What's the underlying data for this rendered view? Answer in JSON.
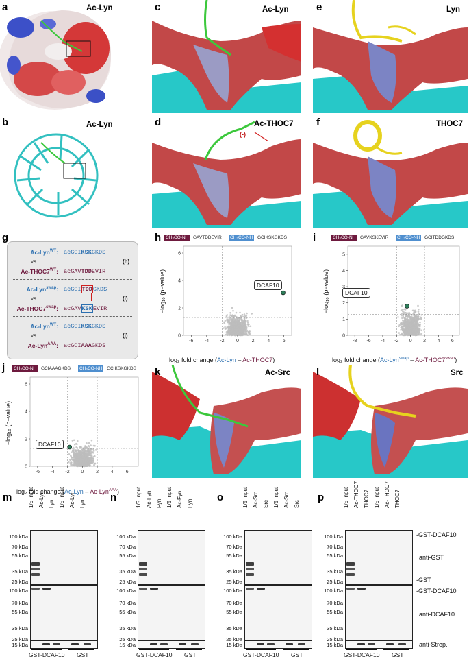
{
  "panels": {
    "a": {
      "label": "a",
      "title": "Ac-Lyn"
    },
    "b": {
      "label": "b",
      "title": "Ac-Lyn"
    },
    "c": {
      "label": "c",
      "title": "Ac-Lyn"
    },
    "d": {
      "label": "d",
      "title": "Ac-THOC7",
      "charge": "(-)"
    },
    "e": {
      "label": "e",
      "title": "Lyn"
    },
    "f": {
      "label": "f",
      "title": "THOC7"
    },
    "k": {
      "label": "k",
      "title": "Ac-Src"
    },
    "l": {
      "label": "l",
      "title": "Src"
    }
  },
  "g": {
    "label": "g",
    "rows": [
      {
        "name1": "Ac-Lyn",
        "sup1": "WT",
        "seq1a": "acGCI",
        "seq1b": "KSK",
        "seq1c": "GKDS",
        "vs": "vs",
        "name2": "Ac-THOC7",
        "sup2": "WT",
        "seq2a": "acGAV",
        "seq2b": "TDD",
        "seq2c": "EVIR",
        "ref": "(h)"
      },
      {
        "name1": "Ac-Lyn",
        "sup1": "swap",
        "seq1a": "acGCI",
        "seq1b": "TDD",
        "seq1c": "GKDS",
        "vs": "vs",
        "name2": "Ac-THOC7",
        "sup2": "swap",
        "seq2a": "acGAV",
        "seq2b": "KSK",
        "seq2c": "EVIR",
        "ref": "(i)"
      },
      {
        "name1": "Ac-Lyn",
        "sup1": "WT",
        "seq1a": "acGCI",
        "seq1b": "KSK",
        "seq1c": "GKDS",
        "vs": "vs",
        "name2": "Ac-Lyn",
        "sup2": "AAA",
        "seq2a": "acGCI",
        "seq2b": "AAA",
        "seq2c": "GKDS",
        "ref": "(j)"
      }
    ]
  },
  "volcano_h": {
    "label": "h",
    "tag_left": "CH₃CO-NH",
    "tag_left_seq": "GAVTDDEVIR",
    "tag_right": "CH₃CO-NH",
    "tag_right_seq": "GCIKSKGKDS",
    "ylabel": "−log₁₀ (p−value)",
    "xlabel_pre": "log₂ fold change (",
    "xlabel_a": "Ac-Lyn",
    "xlabel_mid": " – ",
    "xlabel_b": "Ac-THOC7",
    "xlabel_post": ")",
    "xticks": [
      "-6",
      "-4",
      "-2",
      "0",
      "2",
      "4",
      "6"
    ],
    "yticks": [
      "0",
      "2",
      "4",
      "6"
    ],
    "highlight": "DCAF10"
  },
  "volcano_i": {
    "label": "i",
    "tag_left": "CH₃CO-NH",
    "tag_left_seq": "GAVKSKEVIR",
    "tag_right": "CH₃CO-NH",
    "tag_right_seq": "GCITDDGKDS",
    "ylabel": "−log₁₀ (p−value)",
    "xlabel_pre": "log₂ fold change (",
    "xlabel_a": "Ac-Lyn",
    "xlabel_a_sup": "swap",
    "xlabel_mid": " – ",
    "xlabel_b": "Ac-THOC7",
    "xlabel_b_sup": "swap",
    "xlabel_post": ")",
    "xticks": [
      "-8",
      "-6",
      "-4",
      "-2",
      "0",
      "2",
      "4",
      "6"
    ],
    "yticks": [
      "0",
      "1",
      "2",
      "3",
      "4",
      "5"
    ],
    "highlight": "DCAF10"
  },
  "volcano_j": {
    "label": "j",
    "tag_left": "CH₃CO-NH",
    "tag_left_seq": "GCIAAAGKDS",
    "tag_right": "CH₃CO-NH",
    "tag_right_seq": "GCIKSKGKDS",
    "ylabel": "−log₁₀ (p−value)",
    "xlabel_pre": "log₂ fold change (",
    "xlabel_a": "Ac-Lyn",
    "xlabel_mid": " – ",
    "xlabel_b": "Ac-Lyn",
    "xlabel_b_sup": "AAA",
    "xlabel_post": ")",
    "xticks": [
      "-6",
      "-4",
      "-2",
      "0",
      "2",
      "4",
      "6"
    ],
    "yticks": [
      "0",
      "2",
      "4",
      "6"
    ],
    "highlight": "DCAF10"
  },
  "blots": {
    "kda_top": [
      "100 kDa",
      "70 kDa",
      "55 kDa",
      "35 kDa",
      "25 kDa"
    ],
    "kda_mid": [
      "100 kDa",
      "70 kDa",
      "55 kDa",
      "35 kDa",
      "25 kDa"
    ],
    "kda_bot": [
      "15 kDa"
    ],
    "m": {
      "label": "m",
      "lanes": [
        "1/5 Input",
        "Ac-Lyn",
        "Lyn",
        "1/5 Input",
        "Ac-Lyn",
        "Lyn"
      ]
    },
    "n": {
      "label": "n",
      "lanes": [
        "1/5 Input",
        "Ac-Fyn",
        "Fyn",
        "1/5 Input",
        "Ac-Fyn",
        "Fyn"
      ]
    },
    "o": {
      "label": "o",
      "lanes": [
        "1/5 Input",
        "Ac-Src",
        "Src",
        "1/5 Input",
        "Ac-Src",
        "Src"
      ]
    },
    "p": {
      "label": "p",
      "lanes": [
        "1/5 Input",
        "Ac-THOC7",
        "THOC7",
        "1/5 Input",
        "Ac-THOC7",
        "THOC7"
      ]
    },
    "group_left": "GST-DCAF10",
    "group_right": "GST",
    "right_labels": {
      "gst_dcaf10_top": "GST-DCAF10",
      "anti_gst": "anti-GST",
      "gst": "GST",
      "gst_dcaf10_mid": "GST-DCAF10",
      "anti_dcaf10": "anti-DCAF10",
      "anti_strep": "anti-Strep."
    }
  },
  "chart_data": [
    {
      "type": "scatter",
      "panel": "h",
      "xlabel": "log2 fold change (Ac-Lyn – Ac-THOC7)",
      "ylabel": "-log10 (p-value)",
      "xlim": [
        -7,
        7
      ],
      "ylim": [
        0,
        6.5
      ],
      "thresholds": {
        "x": [
          -2,
          2
        ],
        "y": 1.3
      },
      "series": [
        {
          "name": "DCAF10",
          "x": [
            5.9
          ],
          "y": [
            3.1
          ]
        }
      ]
    },
    {
      "type": "scatter",
      "panel": "i",
      "xlabel": "log2 fold change (Ac-Lyn swap – Ac-THOC7 swap)",
      "ylabel": "-log10 (p-value)",
      "xlim": [
        -9,
        7
      ],
      "ylim": [
        0,
        5.5
      ],
      "thresholds": {
        "x": [
          -2,
          2
        ],
        "y": 1.3
      },
      "series": [
        {
          "name": "DCAF10",
          "x": [
            -0.5
          ],
          "y": [
            1.8
          ]
        }
      ]
    },
    {
      "type": "scatter",
      "panel": "j",
      "xlabel": "log2 fold change (Ac-Lyn – Ac-Lyn AAA)",
      "ylabel": "-log10 (p-value)",
      "xlim": [
        -7,
        7.5
      ],
      "ylim": [
        0,
        6.5
      ],
      "thresholds": {
        "x": [
          -2,
          2
        ],
        "y": 1.3
      },
      "series": [
        {
          "name": "DCAF10",
          "x": [
            -1.7
          ],
          "y": [
            1.4
          ]
        }
      ]
    }
  ]
}
